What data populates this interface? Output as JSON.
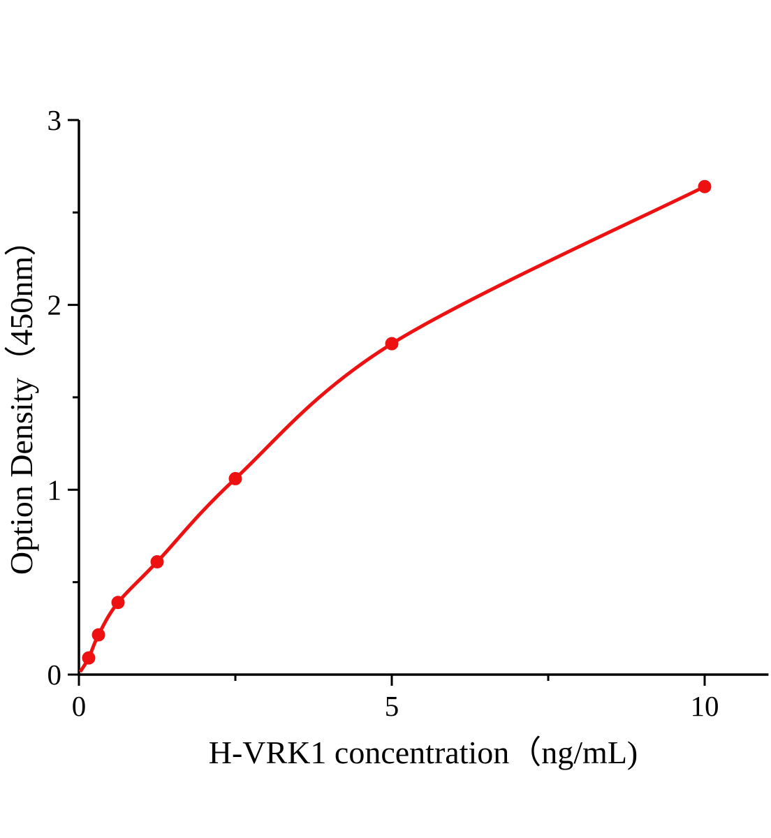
{
  "figure": {
    "background": "#ffffff"
  },
  "chart_data": {
    "type": "scatter",
    "title": "",
    "xlabel": "H-VRK1 concentration（ng/mL)",
    "ylabel": "Option Density（450nm）",
    "x": [
      0.156,
      0.313,
      0.625,
      1.25,
      2.5,
      5,
      10
    ],
    "y": [
      0.09,
      0.215,
      0.39,
      0.61,
      1.06,
      1.79,
      2.64
    ],
    "curve_start": [
      0.02,
      0.015
    ],
    "xlim": [
      0,
      11.02
    ],
    "ylim": [
      0,
      3
    ],
    "x_axis": {
      "major_ticks": [
        0,
        5,
        10
      ],
      "major_tick_labels": [
        "0",
        "5",
        "10"
      ],
      "minor_ticks": [
        2.5,
        7.5
      ]
    },
    "y_axis": {
      "major_ticks": [
        0,
        1,
        2,
        3
      ],
      "major_tick_labels": [
        "0",
        "1",
        "2",
        "3"
      ],
      "minor_ticks": [
        0.5,
        1.5,
        2.5
      ]
    },
    "legend": null,
    "grid": false,
    "colors": {
      "curve": "#ee1111",
      "marker": "#ee1111",
      "axis": "#000000",
      "text": "#000000"
    }
  }
}
